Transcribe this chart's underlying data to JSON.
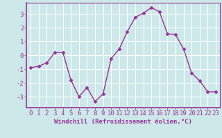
{
  "x": [
    0,
    1,
    2,
    3,
    4,
    5,
    6,
    7,
    8,
    9,
    10,
    11,
    12,
    13,
    14,
    15,
    16,
    17,
    18,
    19,
    20,
    21,
    22,
    23
  ],
  "y": [
    -0.9,
    -0.8,
    -0.55,
    0.2,
    0.2,
    -1.8,
    -3.0,
    -2.35,
    -3.35,
    -2.8,
    -0.25,
    0.45,
    1.7,
    2.75,
    3.05,
    3.45,
    3.15,
    1.55,
    1.5,
    0.45,
    -1.3,
    -1.85,
    -2.65,
    -2.65
  ],
  "line_color": "#993399",
  "marker": "D",
  "marker_size": 2.5,
  "linewidth": 1.0,
  "background_color": "#cce8e8",
  "grid_color": "#ffffff",
  "xlabel": "Windchill (Refroidissement éolien,°C)",
  "xlabel_fontsize": 6.5,
  "tick_fontsize": 6.5,
  "ylim": [
    -3.8,
    3.8
  ],
  "xlim": [
    -0.5,
    23.5
  ],
  "yticks": [
    -3,
    -2,
    -1,
    0,
    1,
    2,
    3
  ],
  "xticks": [
    0,
    1,
    2,
    3,
    4,
    5,
    6,
    7,
    8,
    9,
    10,
    11,
    12,
    13,
    14,
    15,
    16,
    17,
    18,
    19,
    20,
    21,
    22,
    23
  ],
  "spine_color": "#993399",
  "text_color": "#993399"
}
